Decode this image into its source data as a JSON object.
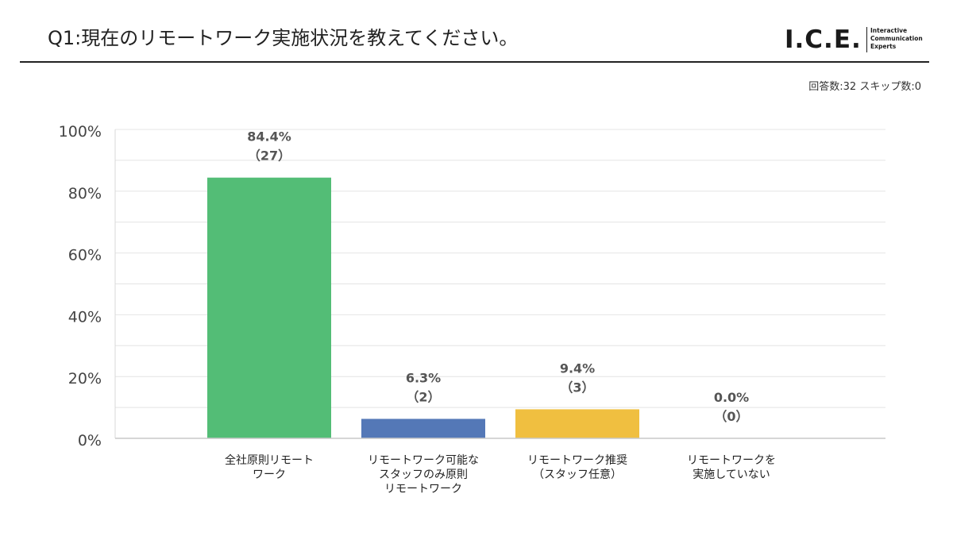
{
  "header": {
    "title": "Q1:現在のリモートワーク実施状況を教えてください。",
    "logo": {
      "main": "I.C.E.",
      "sub_lines": [
        "Interactive",
        "Communication",
        "Experts"
      ]
    },
    "response_summary": "回答数:32 スキップ数:0"
  },
  "chart_data": {
    "type": "bar",
    "categories": [
      [
        "全社原則リモート",
        "ワーク"
      ],
      [
        "リモートワーク可能な",
        "スタッフのみ原則",
        "リモートワーク"
      ],
      [
        "リモートワーク推奨",
        "（スタッフ任意）"
      ],
      [
        "リモートワークを",
        "実施していない"
      ]
    ],
    "values": [
      84.4,
      6.3,
      9.4,
      0.0
    ],
    "counts": [
      27,
      2,
      3,
      0
    ],
    "value_labels": [
      "84.4%",
      "6.3%",
      "9.4%",
      "0.0%"
    ],
    "count_labels": [
      "（27）",
      "（2）",
      "（3）",
      "（0）"
    ],
    "colors": [
      "#53bd76",
      "#5478b7",
      "#f0bf40",
      "#9e9e9e"
    ],
    "ylim": [
      0,
      100
    ],
    "y_ticks": [
      0,
      20,
      40,
      60,
      80,
      100
    ],
    "y_tick_labels": [
      "0%",
      "20%",
      "40%",
      "60%",
      "80%",
      "100%"
    ],
    "grid": true,
    "title": "",
    "xlabel": "",
    "ylabel": ""
  }
}
